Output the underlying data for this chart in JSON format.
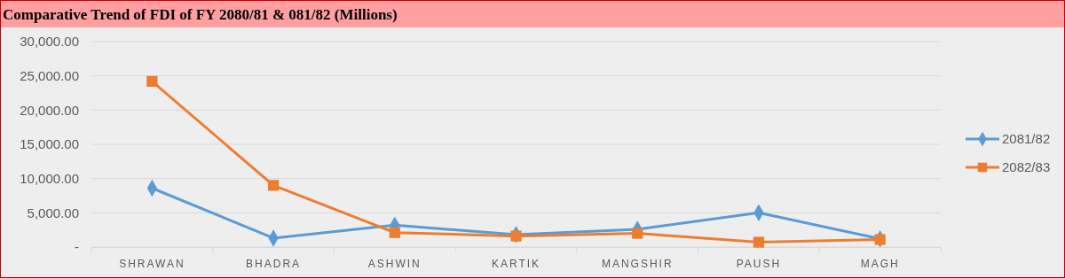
{
  "chart_data": {
    "type": "line",
    "title": "Comparative Trend of FDI of FY 2080/81 & 081/82 (Millions)",
    "categories": [
      "SHRAWAN",
      "BHADRA",
      "ASHWIN",
      "KARTIK",
      "MANGSHIR",
      "PAUSH",
      "MAGH"
    ],
    "series": [
      {
        "name": "2081/82",
        "color": "#5b9bd5",
        "marker": "diamond",
        "values": [
          8600,
          1300,
          3200,
          1800,
          2600,
          5000,
          1200
        ]
      },
      {
        "name": "2082/83",
        "color": "#ed7d31",
        "marker": "square",
        "values": [
          24200,
          9000,
          2100,
          1600,
          2000,
          700,
          1100
        ]
      }
    ],
    "ylim": [
      0,
      30000
    ],
    "yticks": [
      {
        "value": 0,
        "label": "-"
      },
      {
        "value": 5000,
        "label": "5,000.00"
      },
      {
        "value": 10000,
        "label": "10,000.00"
      },
      {
        "value": 15000,
        "label": "15,000.00"
      },
      {
        "value": 20000,
        "label": "20,000.00"
      },
      {
        "value": 25000,
        "label": "25,000.00"
      },
      {
        "value": 30000,
        "label": "30,000.00"
      }
    ],
    "grid": "y",
    "legend": "right",
    "line_style": "solid"
  }
}
